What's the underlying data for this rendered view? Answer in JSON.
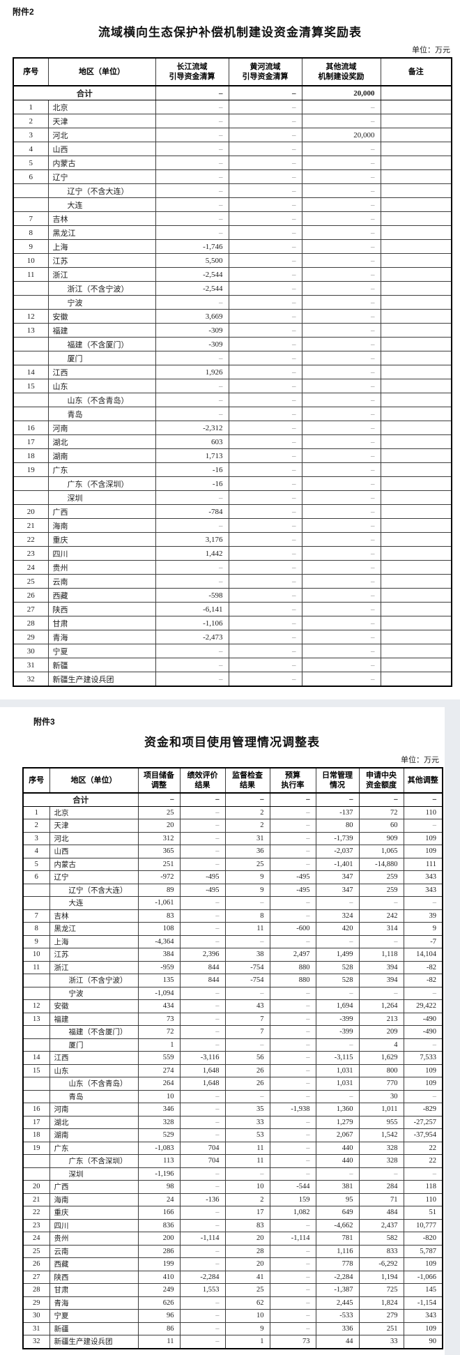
{
  "attachment2": {
    "tag": "附件2",
    "title": "流域横向生态保护补偿机制建设资金清算奖励表",
    "unit": "单位：万元",
    "columns": [
      "序号",
      "地区（单位）",
      "长江流域\n引导资金清算",
      "黄河流域\n引导资金清算",
      "其他流域\n机制建设奖励",
      "备注"
    ],
    "rows": [
      {
        "total": true,
        "name": "合计",
        "v": [
          "–",
          "–",
          "20,000"
        ]
      },
      {
        "no": "1",
        "name": "北京",
        "v": [
          "–",
          "–",
          "–"
        ]
      },
      {
        "no": "2",
        "name": "天津",
        "v": [
          "–",
          "–",
          "–"
        ]
      },
      {
        "no": "3",
        "name": "河北",
        "v": [
          "–",
          "–",
          "20,000"
        ]
      },
      {
        "no": "4",
        "name": "山西",
        "v": [
          "–",
          "–",
          "–"
        ]
      },
      {
        "no": "5",
        "name": "内蒙古",
        "v": [
          "–",
          "–",
          "–"
        ]
      },
      {
        "no": "6",
        "name": "辽宁",
        "v": [
          "–",
          "–",
          "–"
        ]
      },
      {
        "no": "",
        "name": "辽宁（不含大连）",
        "sub": true,
        "v": [
          "–",
          "–",
          "–"
        ]
      },
      {
        "no": "",
        "name": "大连",
        "sub": true,
        "v": [
          "–",
          "–",
          "–"
        ]
      },
      {
        "no": "7",
        "name": "吉林",
        "v": [
          "–",
          "–",
          "–"
        ]
      },
      {
        "no": "8",
        "name": "黑龙江",
        "v": [
          "–",
          "–",
          "–"
        ]
      },
      {
        "no": "9",
        "name": "上海",
        "v": [
          "-1,746",
          "–",
          "–"
        ]
      },
      {
        "no": "10",
        "name": "江苏",
        "v": [
          "5,500",
          "–",
          "–"
        ]
      },
      {
        "no": "11",
        "name": "浙江",
        "v": [
          "-2,544",
          "–",
          "–"
        ]
      },
      {
        "no": "",
        "name": "浙江（不含宁波）",
        "sub": true,
        "v": [
          "-2,544",
          "–",
          "–"
        ]
      },
      {
        "no": "",
        "name": "宁波",
        "sub": true,
        "v": [
          "–",
          "–",
          "–"
        ]
      },
      {
        "no": "12",
        "name": "安徽",
        "v": [
          "3,669",
          "–",
          "–"
        ]
      },
      {
        "no": "13",
        "name": "福建",
        "v": [
          "-309",
          "–",
          "–"
        ]
      },
      {
        "no": "",
        "name": "福建（不含厦门）",
        "sub": true,
        "v": [
          "-309",
          "–",
          "–"
        ]
      },
      {
        "no": "",
        "name": "厦门",
        "sub": true,
        "v": [
          "–",
          "–",
          "–"
        ]
      },
      {
        "no": "14",
        "name": "江西",
        "v": [
          "1,926",
          "–",
          "–"
        ]
      },
      {
        "no": "15",
        "name": "山东",
        "v": [
          "–",
          "–",
          "–"
        ]
      },
      {
        "no": "",
        "name": "山东（不含青岛）",
        "sub": true,
        "v": [
          "–",
          "–",
          "–"
        ]
      },
      {
        "no": "",
        "name": "青岛",
        "sub": true,
        "v": [
          "–",
          "–",
          "–"
        ]
      },
      {
        "no": "16",
        "name": "河南",
        "v": [
          "-2,312",
          "–",
          "–"
        ]
      },
      {
        "no": "17",
        "name": "湖北",
        "v": [
          "603",
          "–",
          "–"
        ]
      },
      {
        "no": "18",
        "name": "湖南",
        "v": [
          "1,713",
          "–",
          "–"
        ]
      },
      {
        "no": "19",
        "name": "广东",
        "v": [
          "-16",
          "–",
          "–"
        ]
      },
      {
        "no": "",
        "name": "广东（不含深圳）",
        "sub": true,
        "v": [
          "-16",
          "–",
          "–"
        ]
      },
      {
        "no": "",
        "name": "深圳",
        "sub": true,
        "v": [
          "–",
          "–",
          "–"
        ]
      },
      {
        "no": "20",
        "name": "广西",
        "v": [
          "-784",
          "–",
          "–"
        ]
      },
      {
        "no": "21",
        "name": "海南",
        "v": [
          "–",
          "–",
          "–"
        ]
      },
      {
        "no": "22",
        "name": "重庆",
        "v": [
          "3,176",
          "–",
          "–"
        ]
      },
      {
        "no": "23",
        "name": "四川",
        "v": [
          "1,442",
          "–",
          "–"
        ]
      },
      {
        "no": "24",
        "name": "贵州",
        "v": [
          "–",
          "–",
          "–"
        ]
      },
      {
        "no": "25",
        "name": "云南",
        "v": [
          "–",
          "–",
          "–"
        ]
      },
      {
        "no": "26",
        "name": "西藏",
        "v": [
          "-598",
          "–",
          "–"
        ]
      },
      {
        "no": "27",
        "name": "陕西",
        "v": [
          "-6,141",
          "–",
          "–"
        ]
      },
      {
        "no": "28",
        "name": "甘肃",
        "v": [
          "-1,106",
          "–",
          "–"
        ]
      },
      {
        "no": "29",
        "name": "青海",
        "v": [
          "-2,473",
          "–",
          "–"
        ]
      },
      {
        "no": "30",
        "name": "宁夏",
        "v": [
          "–",
          "–",
          "–"
        ]
      },
      {
        "no": "31",
        "name": "新疆",
        "v": [
          "–",
          "–",
          "–"
        ]
      },
      {
        "no": "32",
        "name": "新疆生产建设兵团",
        "v": [
          "–",
          "–",
          "–"
        ]
      }
    ]
  },
  "attachment3": {
    "tag": "附件3",
    "title": "资金和项目使用管理情况调整表",
    "unit": "单位：万元",
    "columns": [
      "序号",
      "地区（单位）",
      "项目储备\n调整",
      "绩效评价\n结果",
      "监督检查\n结果",
      "预算\n执行率",
      "日常管理\n情况",
      "申请中央\n资金额度",
      "其他调整"
    ],
    "rows": [
      {
        "total": true,
        "name": "合计",
        "v": [
          "–",
          "–",
          "–",
          "–",
          "–",
          "–",
          "–"
        ]
      },
      {
        "no": "1",
        "name": "北京",
        "v": [
          "25",
          "–",
          "2",
          "–",
          "-137",
          "72",
          "110"
        ]
      },
      {
        "no": "2",
        "name": "天津",
        "v": [
          "20",
          "–",
          "2",
          "–",
          "80",
          "60",
          "–"
        ]
      },
      {
        "no": "3",
        "name": "河北",
        "v": [
          "312",
          "–",
          "31",
          "–",
          "-1,739",
          "909",
          "109"
        ]
      },
      {
        "no": "4",
        "name": "山西",
        "v": [
          "365",
          "–",
          "36",
          "–",
          "-2,037",
          "1,065",
          "109"
        ]
      },
      {
        "no": "5",
        "name": "内蒙古",
        "v": [
          "251",
          "–",
          "25",
          "–",
          "-1,401",
          "-14,880",
          "111"
        ]
      },
      {
        "no": "6",
        "name": "辽宁",
        "v": [
          "-972",
          "-495",
          "9",
          "-495",
          "347",
          "259",
          "343"
        ]
      },
      {
        "no": "",
        "name": "辽宁（不含大连）",
        "sub": true,
        "v": [
          "89",
          "-495",
          "9",
          "-495",
          "347",
          "259",
          "343"
        ]
      },
      {
        "no": "",
        "name": "大连",
        "sub": true,
        "v": [
          "-1,061",
          "–",
          "–",
          "–",
          "–",
          "–",
          "–"
        ]
      },
      {
        "no": "7",
        "name": "吉林",
        "v": [
          "83",
          "–",
          "8",
          "–",
          "324",
          "242",
          "39"
        ]
      },
      {
        "no": "8",
        "name": "黑龙江",
        "v": [
          "108",
          "–",
          "11",
          "-600",
          "420",
          "314",
          "9"
        ]
      },
      {
        "no": "9",
        "name": "上海",
        "v": [
          "-4,364",
          "–",
          "–",
          "–",
          "–",
          "–",
          "-7"
        ]
      },
      {
        "no": "10",
        "name": "江苏",
        "v": [
          "384",
          "2,396",
          "38",
          "2,497",
          "1,499",
          "1,118",
          "14,104"
        ]
      },
      {
        "no": "11",
        "name": "浙江",
        "v": [
          "-959",
          "844",
          "-754",
          "880",
          "528",
          "394",
          "-82"
        ]
      },
      {
        "no": "",
        "name": "浙江（不含宁波）",
        "sub": true,
        "v": [
          "135",
          "844",
          "-754",
          "880",
          "528",
          "394",
          "-82"
        ]
      },
      {
        "no": "",
        "name": "宁波",
        "sub": true,
        "v": [
          "-1,094",
          "–",
          "–",
          "–",
          "–",
          "–",
          "–"
        ]
      },
      {
        "no": "12",
        "name": "安徽",
        "v": [
          "434",
          "–",
          "43",
          "–",
          "1,694",
          "1,264",
          "29,422"
        ]
      },
      {
        "no": "13",
        "name": "福建",
        "v": [
          "73",
          "–",
          "7",
          "–",
          "-399",
          "213",
          "-490"
        ]
      },
      {
        "no": "",
        "name": "福建（不含厦门）",
        "sub": true,
        "v": [
          "72",
          "–",
          "7",
          "–",
          "-399",
          "209",
          "-490"
        ]
      },
      {
        "no": "",
        "name": "厦门",
        "sub": true,
        "v": [
          "1",
          "–",
          "–",
          "–",
          "–",
          "4",
          "–"
        ]
      },
      {
        "no": "14",
        "name": "江西",
        "v": [
          "559",
          "-3,116",
          "56",
          "–",
          "-3,115",
          "1,629",
          "7,533"
        ]
      },
      {
        "no": "15",
        "name": "山东",
        "v": [
          "274",
          "1,648",
          "26",
          "–",
          "1,031",
          "800",
          "109"
        ]
      },
      {
        "no": "",
        "name": "山东（不含青岛）",
        "sub": true,
        "v": [
          "264",
          "1,648",
          "26",
          "–",
          "1,031",
          "770",
          "109"
        ]
      },
      {
        "no": "",
        "name": "青岛",
        "sub": true,
        "v": [
          "10",
          "–",
          "–",
          "–",
          "–",
          "30",
          "–"
        ]
      },
      {
        "no": "16",
        "name": "河南",
        "v": [
          "346",
          "–",
          "35",
          "-1,938",
          "1,360",
          "1,011",
          "-829"
        ]
      },
      {
        "no": "17",
        "name": "湖北",
        "v": [
          "328",
          "–",
          "33",
          "–",
          "1,279",
          "955",
          "-27,257"
        ]
      },
      {
        "no": "18",
        "name": "湖南",
        "v": [
          "529",
          "–",
          "53",
          "–",
          "2,067",
          "1,542",
          "-37,954"
        ]
      },
      {
        "no": "19",
        "name": "广东",
        "v": [
          "-1,083",
          "704",
          "11",
          "–",
          "440",
          "328",
          "22"
        ]
      },
      {
        "no": "",
        "name": "广东（不含深圳）",
        "sub": true,
        "v": [
          "113",
          "704",
          "11",
          "–",
          "440",
          "328",
          "22"
        ]
      },
      {
        "no": "",
        "name": "深圳",
        "sub": true,
        "v": [
          "-1,196",
          "–",
          "–",
          "–",
          "–",
          "–",
          "–"
        ]
      },
      {
        "no": "20",
        "name": "广西",
        "v": [
          "98",
          "–",
          "10",
          "-544",
          "381",
          "284",
          "118"
        ]
      },
      {
        "no": "21",
        "name": "海南",
        "v": [
          "24",
          "-136",
          "2",
          "159",
          "95",
          "71",
          "110"
        ]
      },
      {
        "no": "22",
        "name": "重庆",
        "v": [
          "166",
          "–",
          "17",
          "1,082",
          "649",
          "484",
          "51"
        ]
      },
      {
        "no": "23",
        "name": "四川",
        "v": [
          "836",
          "–",
          "83",
          "–",
          "-4,662",
          "2,437",
          "10,777"
        ]
      },
      {
        "no": "24",
        "name": "贵州",
        "v": [
          "200",
          "-1,114",
          "20",
          "-1,114",
          "781",
          "582",
          "-820"
        ]
      },
      {
        "no": "25",
        "name": "云南",
        "v": [
          "286",
          "–",
          "28",
          "–",
          "1,116",
          "833",
          "5,787"
        ]
      },
      {
        "no": "26",
        "name": "西藏",
        "v": [
          "199",
          "–",
          "20",
          "–",
          "778",
          "-6,292",
          "109"
        ]
      },
      {
        "no": "27",
        "name": "陕西",
        "v": [
          "410",
          "-2,284",
          "41",
          "–",
          "-2,284",
          "1,194",
          "-1,066"
        ]
      },
      {
        "no": "28",
        "name": "甘肃",
        "v": [
          "249",
          "1,553",
          "25",
          "–",
          "-1,387",
          "725",
          "145"
        ]
      },
      {
        "no": "29",
        "name": "青海",
        "v": [
          "626",
          "–",
          "62",
          "–",
          "2,445",
          "1,824",
          "-1,154"
        ]
      },
      {
        "no": "30",
        "name": "宁夏",
        "v": [
          "96",
          "–",
          "10",
          "–",
          "-533",
          "279",
          "343"
        ]
      },
      {
        "no": "31",
        "name": "新疆",
        "v": [
          "86",
          "–",
          "9",
          "–",
          "336",
          "251",
          "109"
        ]
      },
      {
        "no": "32",
        "name": "新疆生产建设兵团",
        "v": [
          "11",
          "–",
          "1",
          "73",
          "44",
          "33",
          "90"
        ]
      }
    ]
  }
}
